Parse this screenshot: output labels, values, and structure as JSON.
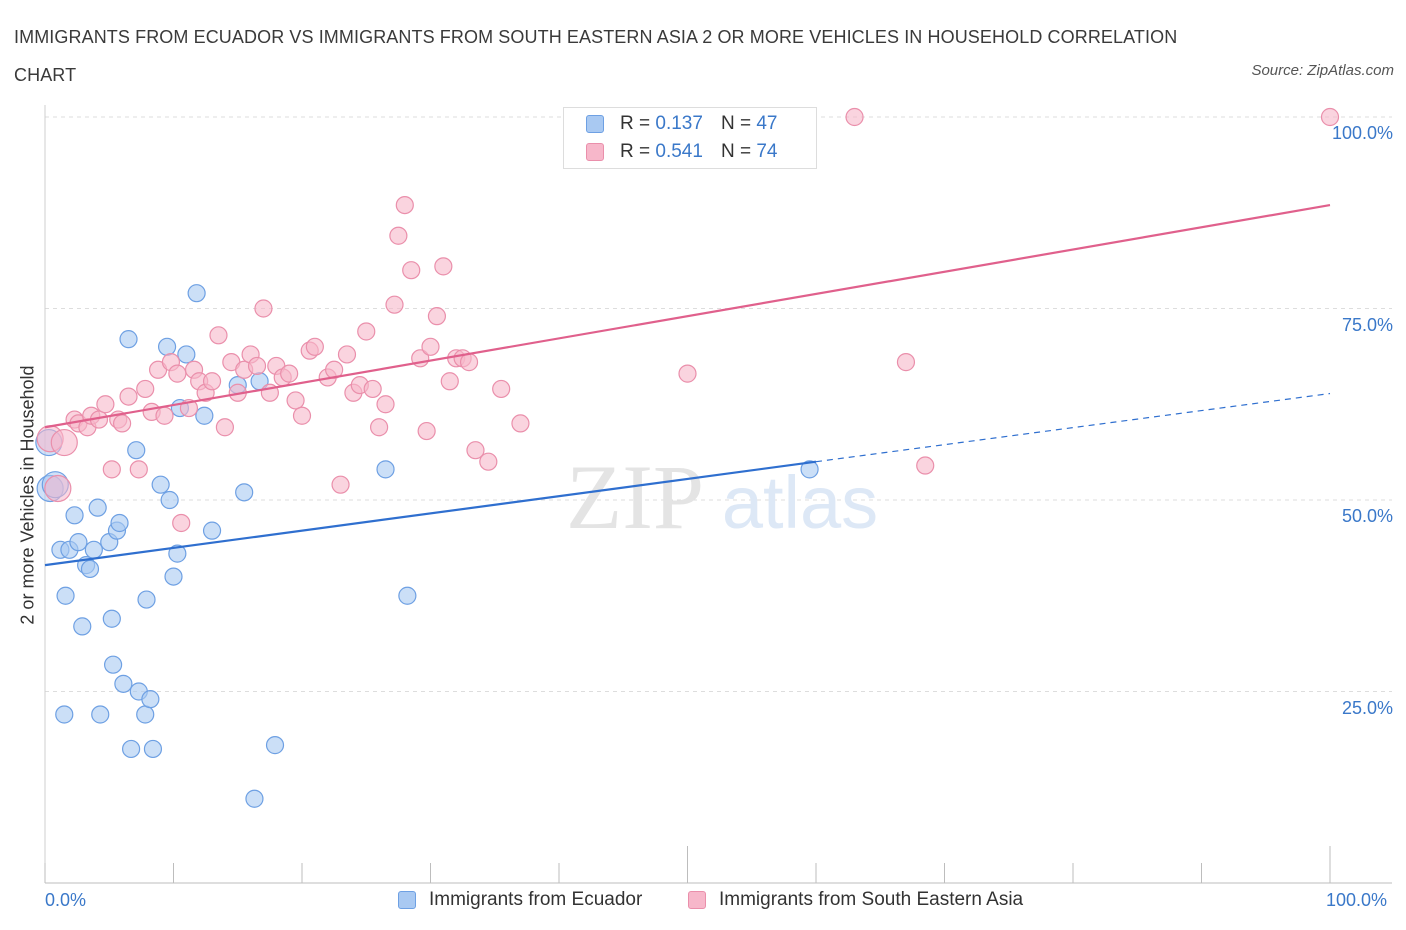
{
  "header": {
    "title": "IMMIGRANTS FROM ECUADOR VS IMMIGRANTS FROM SOUTH EASTERN ASIA 2 OR MORE VEHICLES IN HOUSEHOLD CORRELATION CHART",
    "source": "Source: ZipAtlas.com"
  },
  "legend_top": {
    "series1": {
      "r_label": "R =",
      "r_value": "0.137",
      "n_label": "N =",
      "n_value": "47"
    },
    "series2": {
      "r_label": "R =",
      "r_value": "0.541",
      "n_label": "N =",
      "n_value": "74"
    }
  },
  "legend_bottom": {
    "series1": "Immigrants from Ecuador",
    "series2": "Immigrants from South Eastern Asia"
  },
  "watermark": {
    "zip": "ZIP",
    "atlas": "atlas"
  },
  "colors": {
    "series1_fill": "#a9c9f2",
    "series1_stroke": "#6ea0e3",
    "series1_line": "#2f6fcf",
    "series2_fill": "#f7b7ca",
    "series2_stroke": "#ea8fab",
    "series2_line": "#e0608c",
    "axis_text": "#3a78c9",
    "grid": "#dddddd"
  },
  "chart_data": {
    "type": "scatter",
    "title": "IMMIGRANTS FROM ECUADOR VS IMMIGRANTS FROM SOUTH EASTERN ASIA 2 OR MORE VEHICLES IN HOUSEHOLD CORRELATION CHART",
    "xlabel": "",
    "ylabel": "2 or more Vehicles in Household",
    "xlim": [
      0,
      100
    ],
    "ylim": [
      0,
      100
    ],
    "x_tick_labels": [
      "0.0%",
      "100.0%"
    ],
    "y_tick_labels": [
      "100.0%",
      "75.0%",
      "50.0%",
      "25.0%"
    ],
    "y_ticks": [
      100,
      75,
      50,
      25
    ],
    "grid": true,
    "legend_placement": "top-center",
    "series": [
      {
        "name": "Immigrants from Ecuador",
        "R": 0.137,
        "N": 47,
        "trend": {
          "x": [
            0,
            60
          ],
          "y": [
            41.5,
            55.0
          ],
          "dashed_extension": {
            "x": [
              60,
              100
            ],
            "y": [
              55.0,
              63.9
            ]
          }
        },
        "points": [
          [
            0.3,
            57.5
          ],
          [
            0.4,
            51.5
          ],
          [
            0.8,
            52.0
          ],
          [
            1.2,
            43.5
          ],
          [
            1.6,
            37.5
          ],
          [
            1.9,
            43.5
          ],
          [
            2.3,
            48.0
          ],
          [
            2.6,
            44.5
          ],
          [
            2.9,
            33.5
          ],
          [
            3.2,
            41.5
          ],
          [
            3.5,
            41.0
          ],
          [
            3.8,
            43.5
          ],
          [
            4.1,
            49.0
          ],
          [
            4.3,
            22.0
          ],
          [
            5.0,
            44.5
          ],
          [
            5.2,
            34.5
          ],
          [
            5.3,
            28.5
          ],
          [
            5.6,
            46.0
          ],
          [
            5.8,
            47.0
          ],
          [
            6.1,
            26.0
          ],
          [
            6.5,
            71.0
          ],
          [
            6.7,
            17.5
          ],
          [
            7.1,
            56.5
          ],
          [
            7.3,
            25.0
          ],
          [
            7.8,
            22.0
          ],
          [
            7.9,
            37.0
          ],
          [
            8.2,
            24.0
          ],
          [
            8.4,
            17.5
          ],
          [
            9.0,
            52.0
          ],
          [
            9.5,
            70.0
          ],
          [
            9.7,
            50.0
          ],
          [
            10.0,
            40.0
          ],
          [
            10.3,
            43.0
          ],
          [
            10.5,
            62.0
          ],
          [
            11.0,
            69.0
          ],
          [
            11.8,
            77.0
          ],
          [
            12.4,
            61.0
          ],
          [
            13.0,
            46.0
          ],
          [
            15.0,
            65.0
          ],
          [
            15.5,
            51.0
          ],
          [
            16.3,
            11.0
          ],
          [
            16.7,
            65.5
          ],
          [
            17.9,
            18.0
          ],
          [
            26.5,
            54.0
          ],
          [
            28.2,
            37.5
          ],
          [
            59.5,
            54.0
          ],
          [
            1.5,
            22.0
          ]
        ]
      },
      {
        "name": "Immigrants from South Eastern Asia",
        "R": 0.541,
        "N": 74,
        "trend": {
          "x": [
            0,
            100
          ],
          "y": [
            59.5,
            88.5
          ]
        },
        "points": [
          [
            0.4,
            58.0
          ],
          [
            1.0,
            51.5
          ],
          [
            1.5,
            57.5
          ],
          [
            2.3,
            60.5
          ],
          [
            2.6,
            60.0
          ],
          [
            3.3,
            59.5
          ],
          [
            3.6,
            61.0
          ],
          [
            4.2,
            60.5
          ],
          [
            4.7,
            62.5
          ],
          [
            5.2,
            54.0
          ],
          [
            5.7,
            60.5
          ],
          [
            6.0,
            60.0
          ],
          [
            6.5,
            63.5
          ],
          [
            7.3,
            54.0
          ],
          [
            7.8,
            64.5
          ],
          [
            8.3,
            61.5
          ],
          [
            8.8,
            67.0
          ],
          [
            9.3,
            61.0
          ],
          [
            9.8,
            68.0
          ],
          [
            10.3,
            66.5
          ],
          [
            10.6,
            47.0
          ],
          [
            11.2,
            62.0
          ],
          [
            11.6,
            67.0
          ],
          [
            12.0,
            65.5
          ],
          [
            12.5,
            64.0
          ],
          [
            13.0,
            65.5
          ],
          [
            13.5,
            71.5
          ],
          [
            14.0,
            59.5
          ],
          [
            14.5,
            68.0
          ],
          [
            15.0,
            64.0
          ],
          [
            15.5,
            67.0
          ],
          [
            16.0,
            69.0
          ],
          [
            16.5,
            67.5
          ],
          [
            17.0,
            75.0
          ],
          [
            17.5,
            64.0
          ],
          [
            18.0,
            67.5
          ],
          [
            18.5,
            66.0
          ],
          [
            19.0,
            66.5
          ],
          [
            19.5,
            63.0
          ],
          [
            20.0,
            61.0
          ],
          [
            20.6,
            69.5
          ],
          [
            21.0,
            70.0
          ],
          [
            22.0,
            66.0
          ],
          [
            22.5,
            67.0
          ],
          [
            23.0,
            52.0
          ],
          [
            23.5,
            69.0
          ],
          [
            24.0,
            64.0
          ],
          [
            24.5,
            65.0
          ],
          [
            25.0,
            72.0
          ],
          [
            25.5,
            64.5
          ],
          [
            26.0,
            59.5
          ],
          [
            26.5,
            62.5
          ],
          [
            27.2,
            75.5
          ],
          [
            27.5,
            84.5
          ],
          [
            28.0,
            88.5
          ],
          [
            28.5,
            80.0
          ],
          [
            29.2,
            68.5
          ],
          [
            29.7,
            59.0
          ],
          [
            30.0,
            70.0
          ],
          [
            30.5,
            74.0
          ],
          [
            31.0,
            80.5
          ],
          [
            31.5,
            65.5
          ],
          [
            32.0,
            68.5
          ],
          [
            32.5,
            68.5
          ],
          [
            33.0,
            68.0
          ],
          [
            33.5,
            56.5
          ],
          [
            34.5,
            55.0
          ],
          [
            35.5,
            64.5
          ],
          [
            37.0,
            60.0
          ],
          [
            50.0,
            66.5
          ],
          [
            63.0,
            100.0
          ],
          [
            67.0,
            68.0
          ],
          [
            68.5,
            54.5
          ],
          [
            100.0,
            100.0
          ]
        ]
      }
    ]
  }
}
